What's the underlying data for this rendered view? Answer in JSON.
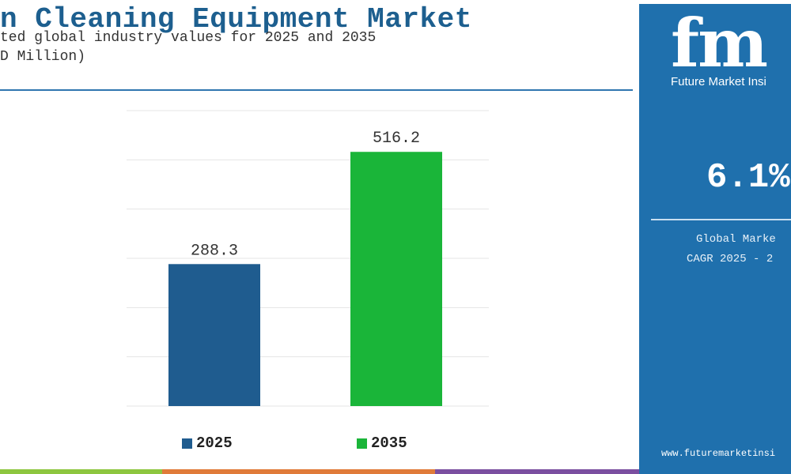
{
  "header": {
    "title": "n Cleaning Equipment Market",
    "subtitle_line1": "ted global industry values for 2025 and 2035",
    "subtitle_line2": "D Million)"
  },
  "chart_data": {
    "type": "bar",
    "categories": [
      "2025",
      "2035"
    ],
    "values": [
      288.3,
      516.2
    ],
    "value_labels": [
      "288.3",
      "516.2"
    ],
    "colors": [
      "#1f5c8f",
      "#1ab539"
    ],
    "ylim": [
      0,
      600
    ],
    "grid": true,
    "legend": {
      "position": "bottom",
      "entries": [
        "2025",
        "2035"
      ]
    }
  },
  "side_panel": {
    "logo_text": "fm",
    "brand_text": "Future Market Insi",
    "cagr_value": "6.1%",
    "cagr_label_line1": "Global Marke",
    "cagr_label_line2": "CAGR 2025 - 2",
    "website": "www.futuremarketinsi",
    "background_color": "#1f70ad"
  },
  "bottom_strip_colors": [
    "#8dc63f",
    "#e07b39",
    "#7b4fa0"
  ]
}
